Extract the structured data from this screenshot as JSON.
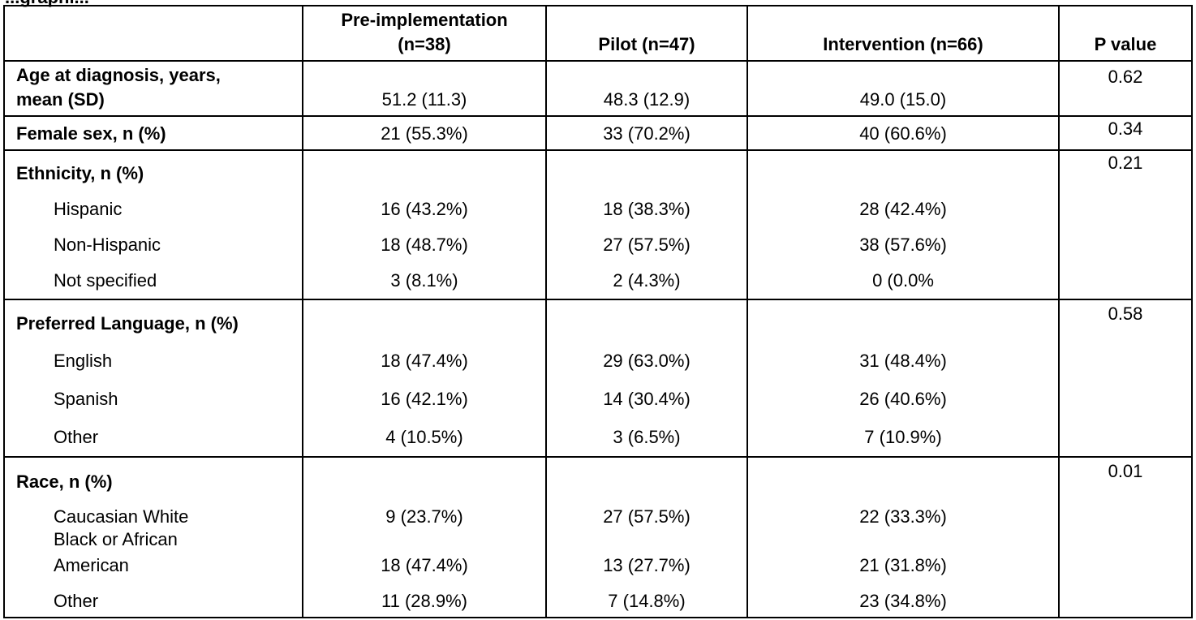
{
  "title_fragment": "...graphi...",
  "headers": {
    "col0": "",
    "col1": "Pre-implementation (n=38)",
    "col1_line1": "Pre-implementation",
    "col1_line2": "(n=38)",
    "col2": "Pilot (n=47)",
    "col3": "Intervention (n=66)",
    "col4": "P value"
  },
  "rows": {
    "age": {
      "label_line1": "Age at diagnosis, years,",
      "label_line2": "mean (SD)",
      "pre": "51.2 (11.3)",
      "pilot": "48.3 (12.9)",
      "intervention": "49.0 (15.0)",
      "p": "0.62"
    },
    "female": {
      "label": "Female sex, n (%)",
      "pre": "21 (55.3%)",
      "pilot": "33 (70.2%)",
      "intervention": "40 (60.6%)",
      "p": "0.34"
    },
    "ethnicity": {
      "label": "Ethnicity, n (%)",
      "p": "0.21",
      "items": [
        {
          "label": "Hispanic",
          "pre": "16 (43.2%)",
          "pilot": "18 (38.3%)",
          "intervention": "28 (42.4%)"
        },
        {
          "label": "Non-Hispanic",
          "pre": "18 (48.7%)",
          "pilot": "27 (57.5%)",
          "intervention": "38 (57.6%)"
        },
        {
          "label": "Not specified",
          "pre": "3 (8.1%)",
          "pilot": "2 (4.3%)",
          "intervention": "0 (0.0%"
        }
      ]
    },
    "language": {
      "label": "Preferred Language, n (%)",
      "p": "0.58",
      "items": [
        {
          "label": "English",
          "pre": "18 (47.4%)",
          "pilot": "29 (63.0%)",
          "intervention": "31 (48.4%)"
        },
        {
          "label": "Spanish",
          "pre": "16 (42.1%)",
          "pilot": "14 (30.4%)",
          "intervention": "26 (40.6%)"
        },
        {
          "label": "Other",
          "pre": "4 (10.5%)",
          "pilot": "3 (6.5%)",
          "intervention": "7 (10.9%)"
        }
      ]
    },
    "race": {
      "label": "Race, n (%)",
      "p": "0.01",
      "items": [
        {
          "label": "Caucasian White",
          "pre": "9 (23.7%)",
          "pilot": "27 (57.5%)",
          "intervention": "22 (33.3%)"
        },
        {
          "label_line1": "Black or African",
          "label_line2": "American",
          "pre": "18 (47.4%)",
          "pilot": "13 (27.7%)",
          "intervention": "21 (31.8%)"
        },
        {
          "label": "Other",
          "pre": "11 (28.9%)",
          "pilot": "7 (14.8%)",
          "intervention": "23 (34.8%)"
        }
      ]
    }
  }
}
